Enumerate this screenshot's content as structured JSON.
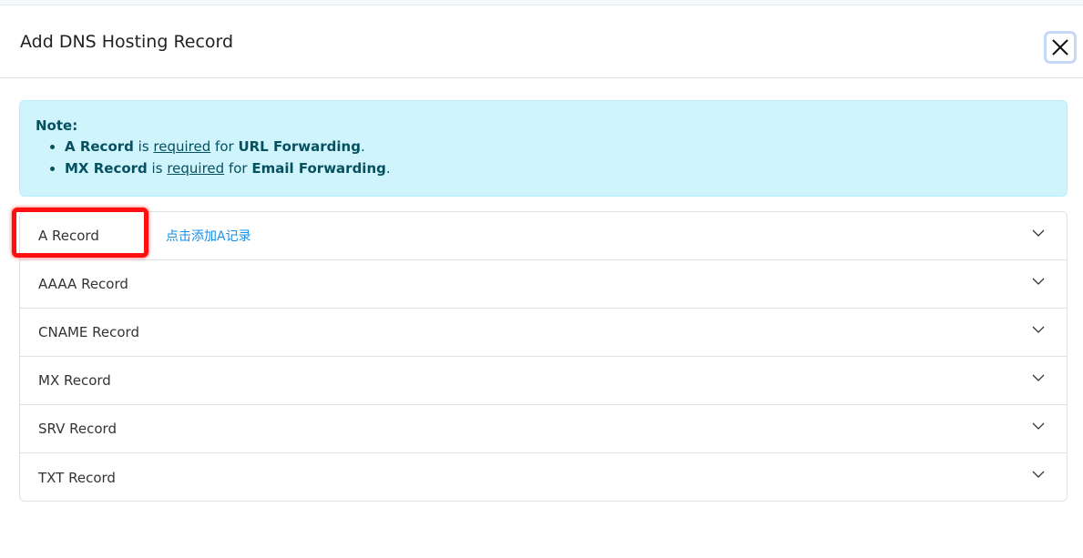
{
  "dialog": {
    "title": "Add DNS Hosting Record",
    "close_icon": "close-icon"
  },
  "note": {
    "heading": "Note:",
    "items": [
      {
        "record": "A Record",
        "is": " is ",
        "required": "required",
        "for": " for ",
        "target": "URL Forwarding",
        "end": "."
      },
      {
        "record": "MX Record",
        "is": " is ",
        "required": "required",
        "for": " for ",
        "target": "Email Forwarding",
        "end": "."
      }
    ]
  },
  "records": [
    {
      "label": "A Record",
      "hint": "点击添加A记录"
    },
    {
      "label": "AAAA Record"
    },
    {
      "label": "CNAME Record"
    },
    {
      "label": "MX Record"
    },
    {
      "label": "SRV Record"
    },
    {
      "label": "TXT Record"
    }
  ],
  "colors": {
    "highlight": "#ff1010",
    "hint": "#1a8fe8",
    "note_bg": "#cff4fc"
  }
}
